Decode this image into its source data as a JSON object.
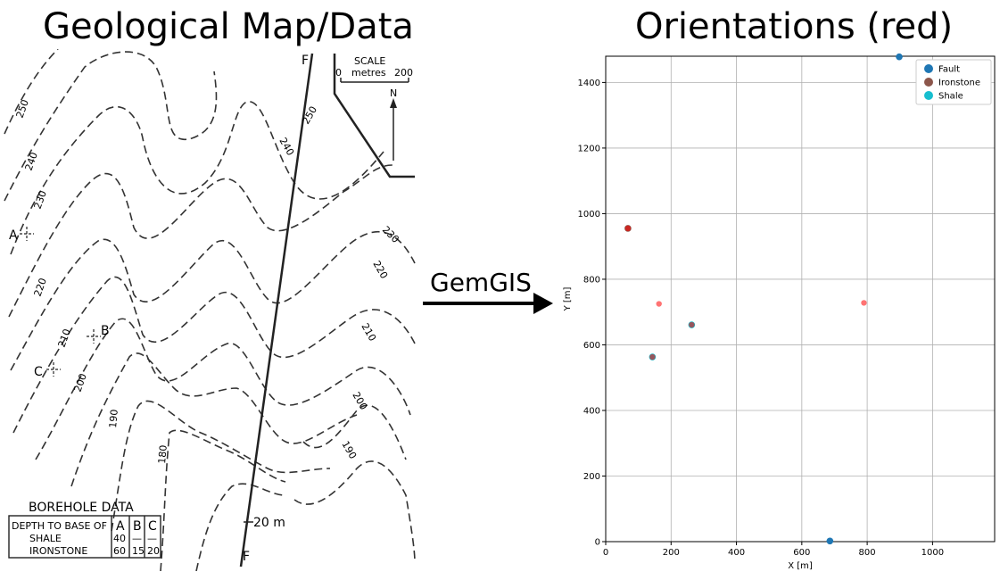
{
  "titles": {
    "left": "Geological Map/Data",
    "right": "Orientations (red)"
  },
  "arrow": {
    "label": "GemGIS"
  },
  "map": {
    "scale_title": "SCALE",
    "scale_zero": "0",
    "scale_unit": "metres",
    "scale_max": "200",
    "north": "N",
    "fault_label_top": "F",
    "fault_label_bottom": "F",
    "fault_throw": "20 m",
    "borehole_labels": [
      "A",
      "B",
      "C"
    ],
    "contour_labels": [
      "250",
      "240",
      "230",
      "220",
      "210",
      "200",
      "190",
      "180",
      "240",
      "250",
      "230",
      "220",
      "210",
      "200",
      "190"
    ],
    "borehole_table": {
      "title": "BOREHOLE DATA",
      "header": [
        "DEPTH TO BASE OF",
        "A",
        "B",
        "C"
      ],
      "rows": [
        [
          "SHALE",
          "40",
          "—",
          "—"
        ],
        [
          "IRONSTONE",
          "60",
          "15",
          "20"
        ]
      ]
    }
  },
  "chart_data": {
    "type": "scatter",
    "title": "",
    "xlabel": "X [m]",
    "ylabel": "Y [m]",
    "xlim": [
      0,
      1190
    ],
    "ylim": [
      0,
      1480
    ],
    "xticks": [
      0,
      200,
      400,
      600,
      800,
      1000
    ],
    "yticks": [
      0,
      200,
      400,
      600,
      800,
      1000,
      1200,
      1400
    ],
    "grid": true,
    "legend_position": "top-right",
    "series": [
      {
        "name": "Fault",
        "color": "#1f77b4",
        "points": [
          [
            898,
            1478
          ],
          [
            686,
            2
          ]
        ]
      },
      {
        "name": "Ironstone",
        "color": "#8c564b",
        "points": [
          [
            68,
            955
          ]
        ]
      },
      {
        "name": "Shale",
        "color": "#17becf",
        "points": [
          [
            263,
            661
          ],
          [
            143,
            563
          ]
        ]
      }
    ],
    "orientations": {
      "color": "#ff0000",
      "points": [
        [
          163,
          725
        ],
        [
          790,
          728
        ],
        [
          263,
          661
        ],
        [
          143,
          563
        ],
        [
          68,
          955
        ]
      ]
    }
  }
}
